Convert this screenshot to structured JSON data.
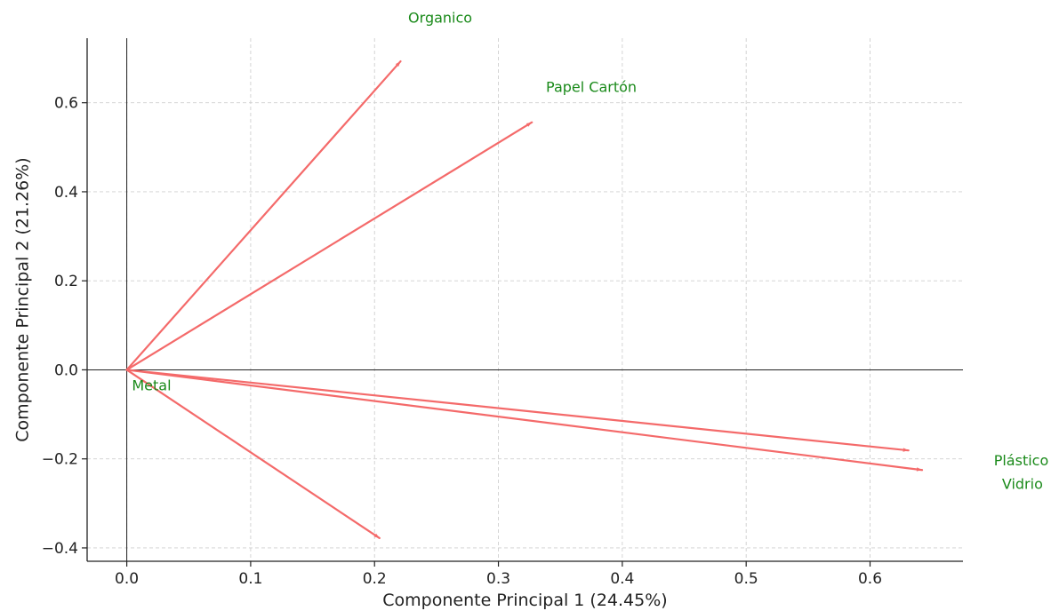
{
  "chart_data": {
    "type": "biplot",
    "xlabel": "Componente Principal 1 (24.45%)",
    "ylabel": "Componente Principal 2 (21.26%)",
    "xlim": [
      -0.032,
      0.675
    ],
    "ylim": [
      -0.43,
      0.745
    ],
    "xticks": [
      0.0,
      0.1,
      0.2,
      0.3,
      0.4,
      0.5,
      0.6
    ],
    "xtick_labels": [
      "0.0",
      "0.1",
      "0.2",
      "0.3",
      "0.4",
      "0.5",
      "0.6"
    ],
    "yticks": [
      -0.4,
      -0.2,
      0.0,
      0.2,
      0.4,
      0.6
    ],
    "ytick_labels": [
      "−0.4",
      "−0.2",
      "0.0",
      "0.2",
      "0.4",
      "0.6"
    ],
    "grid": true,
    "reference_lines": {
      "x": 0,
      "y": 0
    },
    "colors": {
      "arrow": "#f46a6a",
      "label": "#1a8a1a",
      "grid": "#cfcfcf",
      "axis": "#222222"
    },
    "vectors": [
      {
        "x": 0.221,
        "y": 0.693
      },
      {
        "x": 0.327,
        "y": 0.556
      },
      {
        "x": 0.631,
        "y": -0.181
      },
      {
        "x": 0.642,
        "y": -0.225
      },
      {
        "x": 0.204,
        "y": -0.378
      }
    ],
    "labels": [
      {
        "text": "Organico",
        "x": 0.253,
        "y": 0.789
      },
      {
        "text": "Papel Cartón",
        "x": 0.375,
        "y": 0.633
      },
      {
        "text": "Plástico",
        "x": 0.722,
        "y": -0.206
      },
      {
        "text": "Vidrio",
        "x": 0.723,
        "y": -0.258
      },
      {
        "text": "Metal",
        "x": 0.02,
        "y": -0.037
      }
    ]
  }
}
